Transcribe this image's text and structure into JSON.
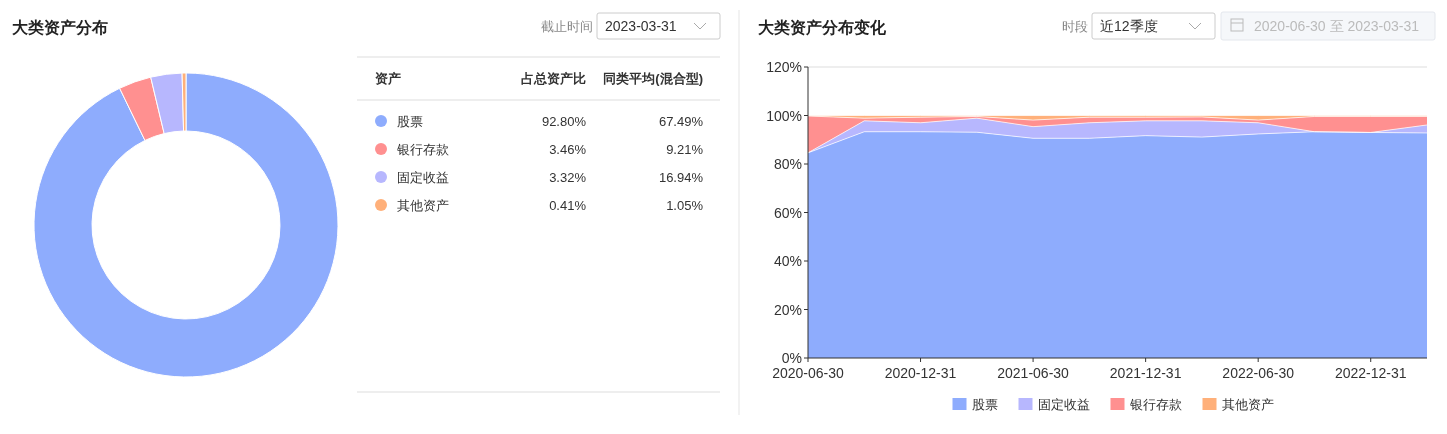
{
  "chart_data": [
    {
      "type": "donut",
      "title": "大类资产分布",
      "categories": [
        "股票",
        "银行存款",
        "固定收益",
        "其他资产"
      ],
      "values": [
        92.8,
        3.46,
        3.32,
        0.41
      ],
      "colors": [
        "#8eacfd",
        "#ff9090",
        "#b7b7fe",
        "#ffb07a"
      ],
      "value_labels": [
        "92.80%",
        "3.46%",
        "3.32%",
        "0.41%"
      ],
      "legend": "right",
      "annotations": [
        "截止时间",
        "2023-03-31",
        "资产",
        "占总资产比"
      ]
    },
    {
      "type": "other",
      "title": "同类平均(混合型)",
      "values": [
        67.49,
        9.21,
        16.94,
        1.05
      ],
      "value_labels": [
        "67.49%",
        "9.21%",
        "16.94%",
        "1.05%"
      ]
    },
    {
      "type": "area",
      "title": "大类资产分布变化",
      "stacked": true,
      "categories": [
        "2020-06-30",
        null,
        "2020-12-31",
        null,
        "2021-06-30",
        null,
        "2021-12-31",
        null,
        "2022-06-30",
        null,
        "2022-12-31",
        null
      ],
      "series": [
        {
          "name": "股票",
          "color": "#8eacfd",
          "values": [
            84.6,
            93.3,
            93.3,
            93.1,
            90.6,
            90.6,
            91.7,
            91.1,
            92.4,
            93.3,
            93.0,
            92.8
          ]
        },
        {
          "name": "固定收益",
          "color": "#b7b7fe",
          "values": [
            0,
            4.5,
            3.7,
            5.8,
            4.8,
            6.4,
            6.1,
            6.7,
            4.6,
            0,
            0,
            3.3
          ]
        },
        {
          "name": "银行存款",
          "color": "#ff9090",
          "values": [
            15.2,
            1.1,
            2.3,
            0.7,
            2.7,
            2.3,
            1.5,
            1.6,
            1.1,
            6.3,
            6.6,
            3.5
          ]
        },
        {
          "name": "其他资产",
          "color": "#ffb07a",
          "values": [
            0.2,
            1.1,
            0.7,
            0.4,
            1.9,
            0.7,
            0.7,
            0.6,
            1.9,
            0.4,
            0.4,
            0.4
          ]
        }
      ],
      "ylim": [
        0,
        120
      ],
      "yticks": [
        {
          "value": 0,
          "label": "0%"
        },
        {
          "value": 20,
          "label": "20%"
        },
        {
          "value": 40,
          "label": "40%"
        },
        {
          "value": 60,
          "label": "60%"
        },
        {
          "value": 80,
          "label": "80%"
        },
        {
          "value": 100,
          "label": "100%"
        },
        {
          "value": 120,
          "label": "120%"
        }
      ],
      "legend": "bottom",
      "annotations": [
        "时段",
        "近12季度",
        "2020-06-30 至 2023-03-31"
      ]
    }
  ]
}
